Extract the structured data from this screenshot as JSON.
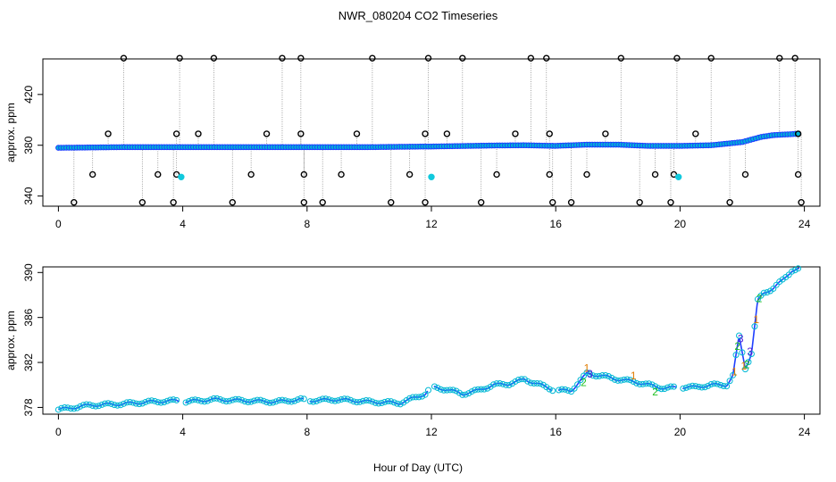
{
  "title": "NWR_080204  CO2 Timeseries",
  "xlabel": "Hour of Day (UTC)",
  "colors": {
    "axis": "#000000",
    "raw": "#000000",
    "primary": "#1f3fff",
    "fill": "#00b8d4",
    "alt": "#11c9dd",
    "digits": [
      "#e07a00",
      "#22c022",
      "#4b1bd6"
    ]
  },
  "chart_data": [
    {
      "type": "scatter",
      "panel": "top",
      "ylabel": "approx. ppm",
      "xlim": [
        -0.5,
        24.5
      ],
      "ylim": [
        332,
        448
      ],
      "xticks": [
        0,
        4,
        8,
        12,
        16,
        20,
        24
      ],
      "yticks": [
        340,
        380,
        420
      ],
      "xtick_labels": [
        "0",
        "4",
        "8",
        "12",
        "16",
        "20",
        "24"
      ],
      "ytick_labels": [
        "340",
        "380",
        "420"
      ],
      "baseline": [
        [
          0,
          378
        ],
        [
          2,
          378.5
        ],
        [
          4,
          378.5
        ],
        [
          6,
          378.5
        ],
        [
          8,
          378.5
        ],
        [
          10,
          378.5
        ],
        [
          11.8,
          379
        ],
        [
          12,
          379
        ],
        [
          14,
          379.8
        ],
        [
          15,
          380
        ],
        [
          16,
          379.5
        ],
        [
          17,
          380.5
        ],
        [
          18,
          380.5
        ],
        [
          19,
          379.5
        ],
        [
          20,
          379.5
        ],
        [
          21,
          380
        ],
        [
          22,
          382.5
        ],
        [
          22.6,
          386.5
        ],
        [
          23,
          388
        ],
        [
          23.8,
          389
        ]
      ],
      "outliers": [
        [
          0.5,
          335
        ],
        [
          1.1,
          357
        ],
        [
          1.6,
          389
        ],
        [
          2.1,
          449
        ],
        [
          2.7,
          335
        ],
        [
          3.2,
          357
        ],
        [
          3.7,
          335
        ],
        [
          3.8,
          357
        ],
        [
          3.8,
          389
        ],
        [
          3.9,
          449
        ],
        [
          4.5,
          389
        ],
        [
          5.0,
          449
        ],
        [
          5.6,
          335
        ],
        [
          6.2,
          357
        ],
        [
          6.7,
          389
        ],
        [
          7.2,
          449
        ],
        [
          7.8,
          449
        ],
        [
          7.8,
          389
        ],
        [
          7.9,
          357
        ],
        [
          7.9,
          335
        ],
        [
          8.5,
          335
        ],
        [
          9.1,
          357
        ],
        [
          9.6,
          389
        ],
        [
          10.1,
          449
        ],
        [
          10.7,
          335
        ],
        [
          11.3,
          357
        ],
        [
          11.8,
          389
        ],
        [
          11.8,
          335
        ],
        [
          11.9,
          449
        ],
        [
          12.5,
          389
        ],
        [
          13.0,
          449
        ],
        [
          13.6,
          335
        ],
        [
          14.1,
          357
        ],
        [
          14.7,
          389
        ],
        [
          15.2,
          449
        ],
        [
          15.7,
          449
        ],
        [
          15.8,
          389
        ],
        [
          15.8,
          357
        ],
        [
          15.9,
          335
        ],
        [
          16.5,
          335
        ],
        [
          17.0,
          357
        ],
        [
          17.6,
          389
        ],
        [
          18.1,
          449
        ],
        [
          18.7,
          335
        ],
        [
          19.2,
          357
        ],
        [
          19.7,
          335
        ],
        [
          19.8,
          357
        ],
        [
          19.9,
          449
        ],
        [
          20.5,
          389
        ],
        [
          21.0,
          449
        ],
        [
          21.6,
          335
        ],
        [
          22.1,
          357
        ],
        [
          23.2,
          449
        ],
        [
          23.7,
          449
        ],
        [
          23.8,
          389
        ],
        [
          23.8,
          357
        ],
        [
          23.9,
          335
        ]
      ],
      "cyan_points": [
        [
          3.95,
          355
        ],
        [
          12.0,
          355
        ],
        [
          19.95,
          355
        ]
      ]
    },
    {
      "type": "scatter",
      "panel": "bottom",
      "ylabel": "approx. ppm",
      "xlim": [
        -0.5,
        24.5
      ],
      "ylim": [
        377.4,
        390.5
      ],
      "xticks": [
        0,
        4,
        8,
        12,
        16,
        20,
        24
      ],
      "yticks": [
        378,
        382,
        386,
        390
      ],
      "xtick_labels": [
        "0",
        "4",
        "8",
        "12",
        "16",
        "20",
        "24"
      ],
      "ytick_labels": [
        "378",
        "382",
        "386",
        "390"
      ],
      "series": [
        [
          0,
          377.8
        ],
        [
          1,
          378.2
        ],
        [
          2,
          378.3
        ],
        [
          3,
          378.5
        ],
        [
          3.8,
          378.6
        ],
        [
          4,
          378.5
        ],
        [
          5,
          378.7
        ],
        [
          6,
          378.6
        ],
        [
          7,
          378.5
        ],
        [
          7.8,
          378.7
        ],
        [
          8,
          378.6
        ],
        [
          9,
          378.7
        ],
        [
          10,
          378.5
        ],
        [
          11,
          378.4
        ],
        [
          11.8,
          379.2
        ],
        [
          12,
          379.8
        ],
        [
          12.5,
          379.6
        ],
        [
          13,
          379.2
        ],
        [
          13.5,
          379.5
        ],
        [
          14,
          380
        ],
        [
          14.5,
          380.1
        ],
        [
          15,
          380.5
        ],
        [
          15.5,
          380
        ],
        [
          16,
          379.5
        ],
        [
          16.5,
          379.5
        ],
        [
          17,
          381
        ],
        [
          17.5,
          380.8
        ],
        [
          18,
          380.5
        ],
        [
          18.5,
          380.3
        ],
        [
          19,
          380
        ],
        [
          19.5,
          379.7
        ],
        [
          20,
          379.8
        ],
        [
          20.5,
          379.8
        ],
        [
          21,
          380
        ],
        [
          21.5,
          380
        ],
        [
          21.7,
          380.8
        ],
        [
          21.9,
          384.3
        ],
        [
          22.1,
          381.5
        ],
        [
          22.3,
          382.8
        ],
        [
          22.5,
          387.5
        ],
        [
          22.7,
          388.2
        ],
        [
          23.0,
          388.6
        ],
        [
          23.3,
          389.3
        ],
        [
          23.6,
          390.2
        ],
        [
          23.8,
          390.3
        ]
      ],
      "digit_labels": [
        [
          21.75,
          "1"
        ],
        [
          21.85,
          "2"
        ],
        [
          21.95,
          "3"
        ],
        [
          22.05,
          "1"
        ],
        [
          22.15,
          "2"
        ],
        [
          22.25,
          "3"
        ],
        [
          22.45,
          "1"
        ],
        [
          22.55,
          "2"
        ],
        [
          17.0,
          "1"
        ],
        [
          16.9,
          "2"
        ],
        [
          17.1,
          "3"
        ],
        [
          18.5,
          "1"
        ],
        [
          19.2,
          "2"
        ]
      ],
      "gaps": [
        [
          3.9,
          4.05
        ],
        [
          7.9,
          8.05
        ],
        [
          11.9,
          12.05
        ],
        [
          15.9,
          16.05
        ],
        [
          19.9,
          20.05
        ]
      ]
    }
  ]
}
